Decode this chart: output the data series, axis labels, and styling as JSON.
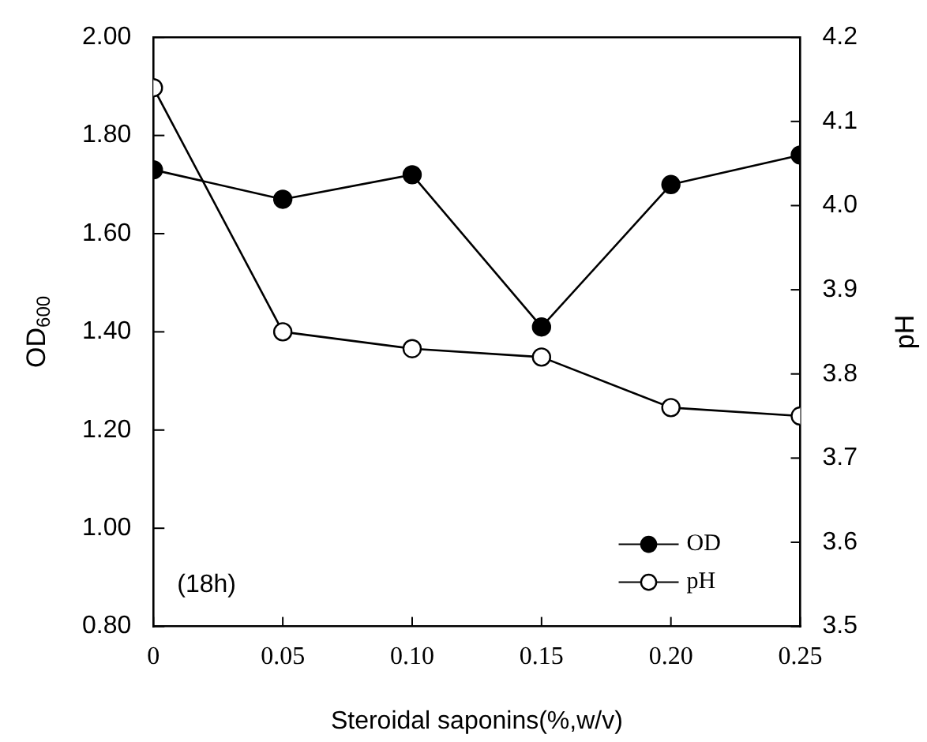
{
  "chart_data": {
    "type": "line",
    "xlabel": "Steroidal saponins(%,w/v)",
    "ylabel": "OD$_{600}$",
    "y2label": "pH",
    "x": [
      0,
      0.05,
      0.1,
      0.15,
      0.2,
      0.25
    ],
    "series": [
      {
        "name": "OD",
        "color": "#000000",
        "marker": "circle",
        "values": [
          1.73,
          1.67,
          1.72,
          1.41,
          1.7,
          1.76
        ]
      },
      {
        "name": "pH",
        "color": "#ffffff",
        "axis": "y2",
        "marker": "circle",
        "values": [
          4.14,
          3.85,
          3.83,
          3.82,
          3.76,
          3.75
        ]
      }
    ],
    "xlim": [
      0,
      0.25
    ],
    "xticks": [
      0,
      {
        "value": 0.05,
        "label": "0.05"
      },
      {
        "value": 0.1,
        "label": "0.10"
      },
      {
        "value": 0.15,
        "label": "0.15"
      },
      {
        "value": 0.2,
        "label": "0.20"
      },
      {
        "value": 0.25,
        "label": "0.25"
      }
    ],
    "ylim": [
      0.8,
      2.0
    ],
    "yticks": [
      {
        "value": 0.8,
        "label": "0.80"
      },
      {
        "value": 1.0,
        "label": "1.00"
      },
      {
        "value": 1.2,
        "label": "1.20"
      },
      {
        "value": 1.4,
        "label": "1.40"
      },
      {
        "value": 1.6,
        "label": "1.60"
      },
      {
        "value": 1.8,
        "label": "1.80"
      },
      {
        "value": 2.0,
        "label": "2.00"
      }
    ],
    "y2lim": [
      3.5,
      4.2
    ],
    "y2ticks": [
      3.5,
      3.6,
      3.7,
      3.8,
      3.9,
      {
        "value": 4.0,
        "label": "4.0"
      },
      4.1,
      4.2
    ],
    "grid": false,
    "legend": "bottom right",
    "annotations": [
      "(18h)"
    ]
  }
}
